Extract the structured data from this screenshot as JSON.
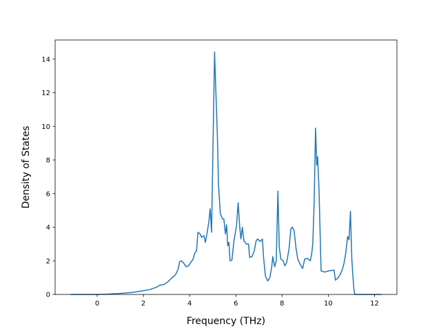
{
  "chart_data": {
    "type": "line",
    "xlabel": "Frequency (THz)",
    "ylabel": "Density of States",
    "x": [
      -1.15,
      0,
      0.5,
      1.0,
      1.5,
      2.0,
      2.3,
      2.6,
      2.7,
      2.9,
      3.0,
      3.1,
      3.2,
      3.3,
      3.4,
      3.5,
      3.57,
      3.65,
      3.75,
      3.85,
      3.95,
      4.05,
      4.15,
      4.22,
      4.3,
      4.36,
      4.45,
      4.52,
      4.62,
      4.68,
      4.75,
      4.83,
      4.89,
      4.95,
      5.08,
      5.15,
      5.2,
      5.25,
      5.33,
      5.42,
      5.48,
      5.55,
      5.6,
      5.65,
      5.7,
      5.75,
      5.83,
      5.92,
      6.03,
      6.1,
      6.17,
      6.22,
      6.28,
      6.35,
      6.45,
      6.55,
      6.6,
      6.7,
      6.8,
      6.88,
      6.95,
      7.05,
      7.15,
      7.2,
      7.28,
      7.38,
      7.47,
      7.55,
      7.6,
      7.68,
      7.75,
      7.82,
      7.88,
      7.95,
      8.05,
      8.12,
      8.2,
      8.3,
      8.38,
      8.44,
      8.52,
      8.6,
      8.68,
      8.78,
      8.89,
      8.98,
      9.1,
      9.18,
      9.22,
      9.28,
      9.33,
      9.39,
      9.45,
      9.5,
      9.54,
      9.6,
      9.65,
      9.69,
      9.85,
      10.0,
      10.15,
      10.25,
      10.31,
      10.4,
      10.5,
      10.6,
      10.68,
      10.75,
      10.84,
      10.9,
      10.96,
      11.02,
      11.07,
      11.11,
      11.15,
      12.3
    ],
    "series": [
      {
        "color": "#1f77b4",
        "values": [
          0,
          0,
          0.02,
          0.06,
          0.12,
          0.22,
          0.3,
          0.45,
          0.55,
          0.6,
          0.7,
          0.8,
          0.95,
          1.05,
          1.2,
          1.5,
          1.95,
          2.0,
          1.85,
          1.65,
          1.7,
          1.9,
          2.1,
          2.45,
          2.6,
          3.7,
          3.6,
          3.4,
          3.5,
          3.1,
          3.6,
          4.3,
          5.1,
          3.7,
          14.42,
          11.5,
          9.5,
          6.5,
          4.8,
          4.5,
          4.5,
          3.6,
          4.15,
          2.9,
          3.1,
          2.0,
          2.05,
          3.2,
          4.1,
          5.45,
          4.0,
          3.3,
          4.0,
          3.2,
          3.0,
          3.0,
          2.2,
          2.25,
          2.6,
          3.2,
          3.3,
          3.15,
          3.3,
          2.2,
          1.1,
          0.8,
          1.0,
          1.6,
          2.25,
          1.65,
          2.0,
          6.15,
          2.8,
          2.1,
          2.0,
          1.7,
          1.9,
          2.7,
          3.9,
          4.0,
          3.8,
          2.8,
          2.1,
          1.8,
          1.55,
          2.1,
          2.15,
          2.05,
          2.0,
          2.4,
          3.0,
          5.5,
          9.9,
          7.7,
          8.2,
          6.2,
          3.5,
          1.4,
          1.33,
          1.4,
          1.42,
          1.45,
          0.85,
          0.95,
          1.15,
          1.45,
          1.85,
          2.4,
          3.45,
          3.25,
          4.95,
          2.1,
          1.0,
          0.3,
          0,
          0
        ]
      }
    ],
    "xlim": [
      -1.82,
      12.97
    ],
    "xticks": [
      0,
      2,
      4,
      6,
      8,
      10,
      12
    ],
    "ylim": [
      0,
      15.14
    ],
    "yticks": [
      0,
      2,
      4,
      6,
      8,
      10,
      12,
      14
    ],
    "grid": false
  }
}
